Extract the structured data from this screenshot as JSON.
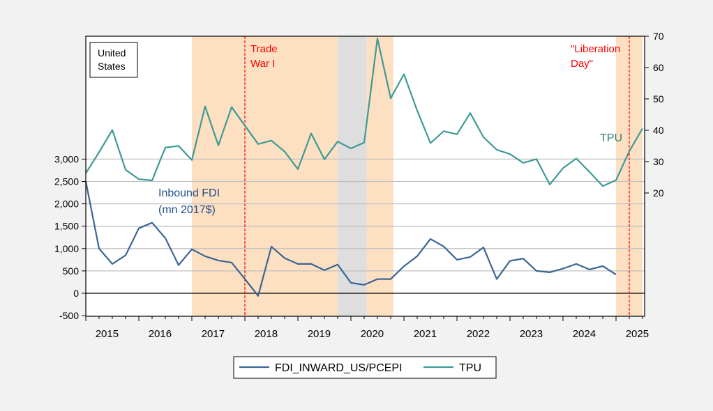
{
  "chart_data": {
    "type": "line",
    "title": "",
    "x_start_year": 2015,
    "frequency": "quarterly",
    "x_tick_labels": [
      "2015",
      "2016",
      "2017",
      "2018",
      "2019",
      "2020",
      "2021",
      "2022",
      "2023",
      "2024",
      "2025"
    ],
    "left_axis": {
      "ylim": [
        -500,
        3000
      ],
      "ticks": [
        -500,
        0,
        500,
        1000,
        1500,
        2000,
        2500,
        3000
      ],
      "tick_labels": [
        "-500",
        "0",
        "500",
        "1,000",
        "1,500",
        "2,000",
        "2,500",
        "3,000"
      ]
    },
    "right_axis": {
      "ylim": [
        -8.9,
        70
      ],
      "ticks": [
        20,
        30,
        40,
        50,
        60,
        70
      ],
      "tick_labels": [
        "20",
        "30",
        "40",
        "50",
        "60",
        "70"
      ]
    },
    "grid": true,
    "series": [
      {
        "name": "FDI_INWARD_US/PCEPI",
        "axis": "left",
        "color": "#3a6595",
        "values": [
          2500,
          1000,
          656,
          849,
          1453,
          1578,
          1234,
          630,
          984,
          828,
          734,
          687,
          320,
          -57,
          1042,
          786,
          656,
          656,
          516,
          641,
          234,
          188,
          318,
          318,
          604,
          828,
          1213,
          1047,
          750,
          812,
          1026,
          318,
          724,
          776,
          500,
          469,
          552,
          656,
          531,
          609,
          417
        ]
      },
      {
        "name": "TPU",
        "axis": "right",
        "color": "#3e9a94",
        "values": [
          26.3,
          33.0,
          40.1,
          27.4,
          24.4,
          24.0,
          34.5,
          35.0,
          30.5,
          47.6,
          35.2,
          47.4,
          41.5,
          35.6,
          36.7,
          33.2,
          27.6,
          39.0,
          30.7,
          36.4,
          34.2,
          36.1,
          69.3,
          50.2,
          57.9,
          46.3,
          35.9,
          39.7,
          38.7,
          45.5,
          37.8,
          33.8,
          32.4,
          29.6,
          30.8,
          22.7,
          27.9,
          31.0,
          26.7,
          22.2,
          24.1,
          33.3,
          40.6
        ]
      }
    ],
    "shaded_periods": [
      {
        "from": 2017.0,
        "to": 2019.75,
        "color": "#fde0c2"
      },
      {
        "from": 2019.75,
        "to": 2020.3,
        "color": "#dedede"
      },
      {
        "from": 2020.3,
        "to": 2020.8,
        "color": "#fde0c2"
      },
      {
        "from": 2025.0,
        "to": 2025.5,
        "color": "#fde0c2"
      }
    ],
    "vertical_lines": [
      {
        "at": 2018.0,
        "color": "#ff0000",
        "label": [
          "Trade",
          "War I"
        ]
      },
      {
        "at": 2025.25,
        "color": "#ff0000",
        "label": [
          "\"Liberation",
          "Day\""
        ]
      }
    ],
    "annotations": {
      "country_box": [
        "United",
        "States"
      ],
      "fdi_label": [
        "Inbound FDI",
        "(mn 2017$)"
      ],
      "tpu_label": "TPU"
    },
    "legend": {
      "placement": "bottom-center",
      "items": [
        "FDI_INWARD_US/PCEPI",
        "TPU"
      ]
    }
  }
}
